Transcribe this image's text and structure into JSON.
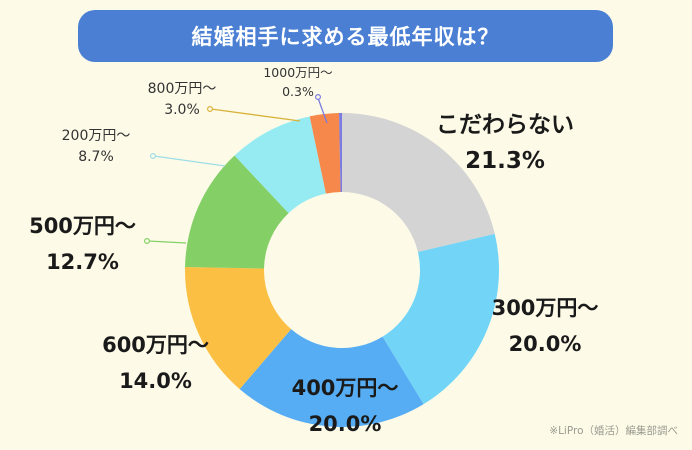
{
  "header": {
    "title": "結婚相手に求める最低年収は？"
  },
  "source_note": "※LiPro（婚活）編集部調べ",
  "chart_data": {
    "type": "pie",
    "subtype": "donut",
    "title": "結婚相手に求める最低年収は？",
    "start_angle": "top, clockwise",
    "categories": [
      "こだわらない",
      "300万円～",
      "400万円～",
      "600万円～",
      "500万円～",
      "200万円～",
      "800万円～",
      "1000万円～"
    ],
    "values": [
      21.3,
      20.0,
      20.0,
      14.0,
      12.7,
      8.7,
      3.0,
      0.3
    ],
    "unit": "%",
    "colors": [
      "#d4d4d4",
      "#72d5f7",
      "#56adf4",
      "#fbbf43",
      "#84cf66",
      "#96ebf3",
      "#f5884a",
      "#7b7be0"
    ],
    "legend": "none (labels placed around donut)",
    "annotations": [
      "※LiPro（婚活）編集部調べ"
    ]
  },
  "labels": [
    {
      "name": "こだわらない",
      "pct": "21.3%"
    },
    {
      "name": "300万円～",
      "pct": "20.0%"
    },
    {
      "name": "400万円～",
      "pct": "20.0%"
    },
    {
      "name": "600万円～",
      "pct": "14.0%"
    },
    {
      "name": "500万円～",
      "pct": "12.7%"
    },
    {
      "name": "200万円～",
      "pct": "8.7%"
    },
    {
      "name": "800万円～",
      "pct": "3.0%"
    },
    {
      "name": "1000万円～",
      "pct": "0.3%"
    }
  ]
}
